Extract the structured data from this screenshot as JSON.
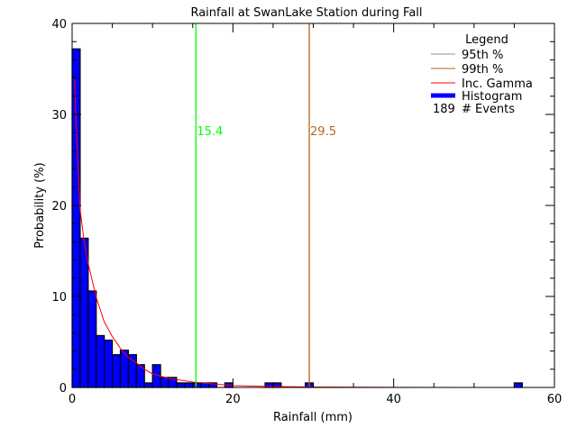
{
  "chart_data": {
    "type": "bar",
    "title": "Rainfall at SwanLake Station during Fall",
    "xlabel": "Rainfall (mm)",
    "ylabel": "Probability (%)",
    "xlim": [
      0,
      60
    ],
    "ylim": [
      0,
      40
    ],
    "x_ticks": [
      "0",
      "20",
      "40",
      "60"
    ],
    "y_ticks": [
      "0",
      "10",
      "20",
      "30",
      "40"
    ],
    "bin_width": 1,
    "histogram": {
      "name": "Histogram",
      "color": "#0000ff",
      "bins": [
        {
          "x": 0,
          "value": 37.2
        },
        {
          "x": 1,
          "value": 16.4
        },
        {
          "x": 2,
          "value": 10.6
        },
        {
          "x": 3,
          "value": 5.7
        },
        {
          "x": 4,
          "value": 5.2
        },
        {
          "x": 5,
          "value": 3.6
        },
        {
          "x": 6,
          "value": 4.1
        },
        {
          "x": 7,
          "value": 3.6
        },
        {
          "x": 8,
          "value": 2.5
        },
        {
          "x": 9,
          "value": 0.5
        },
        {
          "x": 10,
          "value": 2.5
        },
        {
          "x": 11,
          "value": 1.1
        },
        {
          "x": 12,
          "value": 1.1
        },
        {
          "x": 13,
          "value": 0.5
        },
        {
          "x": 14,
          "value": 0.5
        },
        {
          "x": 15,
          "value": 0.5
        },
        {
          "x": 16,
          "value": 0.5
        },
        {
          "x": 17,
          "value": 0.5
        },
        {
          "x": 19,
          "value": 0.5
        },
        {
          "x": 24,
          "value": 0.5
        },
        {
          "x": 25,
          "value": 0.5
        },
        {
          "x": 29,
          "value": 0.5
        },
        {
          "x": 55,
          "value": 0.5
        }
      ]
    },
    "gamma_curve": {
      "name": "Inc. Gamma",
      "color": "#ff0000",
      "x": [
        0.3,
        0.5,
        1,
        1.5,
        2,
        3,
        4,
        5,
        6,
        7,
        8,
        9,
        10,
        12,
        15,
        20,
        25,
        30,
        40,
        60
      ],
      "y": [
        34,
        28.7,
        19.5,
        16,
        13.6,
        9.9,
        7.2,
        5.6,
        4.3,
        3.3,
        2.7,
        2.0,
        1.5,
        1.0,
        0.6,
        0.2,
        0.1,
        0.05,
        0.01,
        0
      ]
    },
    "percentiles": [
      {
        "name": "95th %",
        "value": 15.4,
        "label": "15.4",
        "color": "#00ff00",
        "legend_color": "#909090"
      },
      {
        "name": "99th %",
        "value": 29.5,
        "label": "29.5",
        "color": "#b8641e",
        "legend_color": "#b8641e"
      }
    ],
    "legend": {
      "title": "Legend",
      "placement": "top-right",
      "entries": [
        "95th %",
        "99th %",
        "Inc. Gamma",
        "Histogram"
      ],
      "events_count": "189",
      "events_label": "# Events"
    },
    "grid": false
  }
}
